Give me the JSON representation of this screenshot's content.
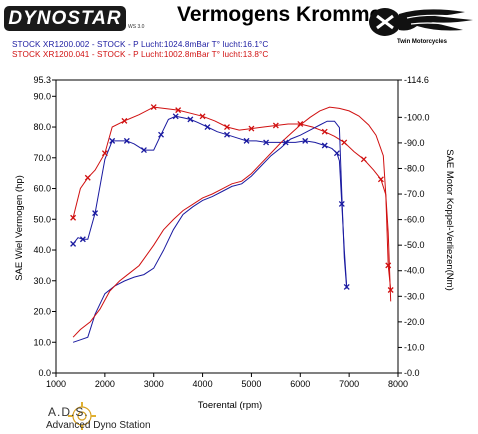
{
  "header": {
    "logo_text": "DYNOSTAR",
    "logo_sub": "WS 3.0",
    "title": "Vermogens Kromme",
    "brand_name": "Twin Motorcycles"
  },
  "runs": [
    "STOCK XR1200.002 - STOCK - P Lucht:1024.8mBar T° lucht:16.1°C",
    "STOCK XR1200.041 - STOCK - P Lucht:1002.8mBar T° lucht:13.8°C"
  ],
  "footer": {
    "ads_title": "A.D.S.",
    "ads_subtitle": "Advanced Dyno Station"
  },
  "chart_data": {
    "type": "line",
    "xlabel": "Toerental (rpm)",
    "ylabel": "SAE Wiel Vermogen (hp)",
    "ylabel_right": "SAE Motor Koppel-Verliezen(Nm)",
    "xlim": [
      1000,
      8000
    ],
    "ylim": [
      0.0,
      95.3
    ],
    "ylim_right": [
      0.0,
      114.6
    ],
    "x_ticks": [
      "1000",
      "2000",
      "3000",
      "4000",
      "5000",
      "6000",
      "7000",
      "8000"
    ],
    "y_ticks": [
      "0.0",
      "10.0",
      "20.0",
      "30.0",
      "40.0",
      "50.0",
      "60.0",
      "70.0",
      "80.0",
      "90.0",
      "95.3"
    ],
    "y_ticks_right": [
      "0.0",
      "10.0",
      "20.0",
      "30.0",
      "40.0",
      "50.0",
      "60.0",
      "70.0",
      "80.0",
      "90.0",
      "100.0",
      "114.6"
    ],
    "grid": false,
    "colors": {
      "blue": "#1a1aa0",
      "red": "#d01010"
    },
    "series": [
      {
        "name": "STOCK XR1200.002 - STOCK - P Lucht:1024.8mBar T° lucht:16.1°C",
        "quantity": "power",
        "axis": "left",
        "color": "#1a1aa0",
        "x": [
          1350,
          1450,
          1550,
          1650,
          1800,
          2000,
          2150,
          2300,
          2450,
          2600,
          2800,
          3000,
          3150,
          3300,
          3450,
          3600,
          3750,
          3900,
          4100,
          4300,
          4500,
          4700,
          4900,
          5100,
          5300,
          5500,
          5700,
          5900,
          6100,
          6300,
          6500,
          6650,
          6750,
          6800,
          6850,
          6900,
          6950
        ],
        "y": [
          42.0,
          44.0,
          43.5,
          43.5,
          52.0,
          69.5,
          75.5,
          75.5,
          75.5,
          74.5,
          72.5,
          72.5,
          77.5,
          82.5,
          83.5,
          83.0,
          82.5,
          81.5,
          80.0,
          78.5,
          77.5,
          76.5,
          75.5,
          75.5,
          75.0,
          75.0,
          75.0,
          75.0,
          75.5,
          75.0,
          74.0,
          73.0,
          71.5,
          69.0,
          55.0,
          40.0,
          28.0
        ]
      },
      {
        "name": "STOCK XR1200.041 - STOCK - P Lucht:1002.8mBar T° lucht:13.8°C",
        "quantity": "power",
        "axis": "left",
        "color": "#d01010",
        "x": [
          1350,
          1500,
          1650,
          1800,
          2000,
          2150,
          2400,
          2700,
          3000,
          3250,
          3500,
          3750,
          4000,
          4250,
          4500,
          4750,
          5000,
          5250,
          5500,
          5750,
          6000,
          6250,
          6500,
          6700,
          6900,
          7100,
          7300,
          7500,
          7650,
          7750,
          7800,
          7850
        ],
        "y": [
          50.5,
          60.0,
          63.5,
          66.0,
          71.5,
          80.0,
          82.0,
          84.0,
          86.5,
          86.0,
          85.5,
          84.5,
          83.5,
          82.0,
          80.0,
          79.0,
          79.5,
          80.0,
          80.5,
          81.0,
          81.0,
          80.0,
          78.5,
          77.0,
          75.0,
          72.0,
          69.5,
          66.0,
          63.0,
          58.0,
          35.0,
          27.0
        ]
      },
      {
        "name": "",
        "quantity": "torque",
        "axis": "right",
        "color": "#1a1aa0",
        "x": [
          1350,
          1500,
          1650,
          1800,
          2000,
          2200,
          2400,
          2600,
          2800,
          3000,
          3200,
          3400,
          3600,
          3800,
          4000,
          4200,
          4400,
          4600,
          4800,
          5000,
          5200,
          5400,
          5600,
          5800,
          6000,
          6200,
          6400,
          6550,
          6700,
          6800,
          6850,
          6900,
          6950
        ],
        "y": [
          12.0,
          13.0,
          14.0,
          23.0,
          31.0,
          34.0,
          36.0,
          37.5,
          38.5,
          41.0,
          48.0,
          56.0,
          62.0,
          65.0,
          67.5,
          69.0,
          71.0,
          73.0,
          74.0,
          77.0,
          81.0,
          85.0,
          88.0,
          91.5,
          93.0,
          95.0,
          97.0,
          98.5,
          98.5,
          96.0,
          70.0,
          45.0,
          33.0
        ]
      },
      {
        "name": "",
        "quantity": "torque",
        "axis": "right",
        "color": "#d01010",
        "x": [
          1350,
          1500,
          1700,
          1900,
          2100,
          2300,
          2500,
          2700,
          3000,
          3200,
          3400,
          3600,
          3800,
          4000,
          4200,
          4400,
          4600,
          4800,
          5000,
          5200,
          5400,
          5600,
          5800,
          6000,
          6200,
          6400,
          6600,
          6800,
          7000,
          7200,
          7400,
          7550,
          7700,
          7800,
          7850
        ],
        "y": [
          14.0,
          17.0,
          20.0,
          25.0,
          32.0,
          36.0,
          39.0,
          42.0,
          50.0,
          56.0,
          60.0,
          63.5,
          66.0,
          68.5,
          70.0,
          72.0,
          74.0,
          75.0,
          78.0,
          82.0,
          86.0,
          90.0,
          93.5,
          97.0,
          100.0,
          102.5,
          104.0,
          103.5,
          102.5,
          100.5,
          97.0,
          93.0,
          85.0,
          55.0,
          28.0
        ]
      }
    ]
  }
}
